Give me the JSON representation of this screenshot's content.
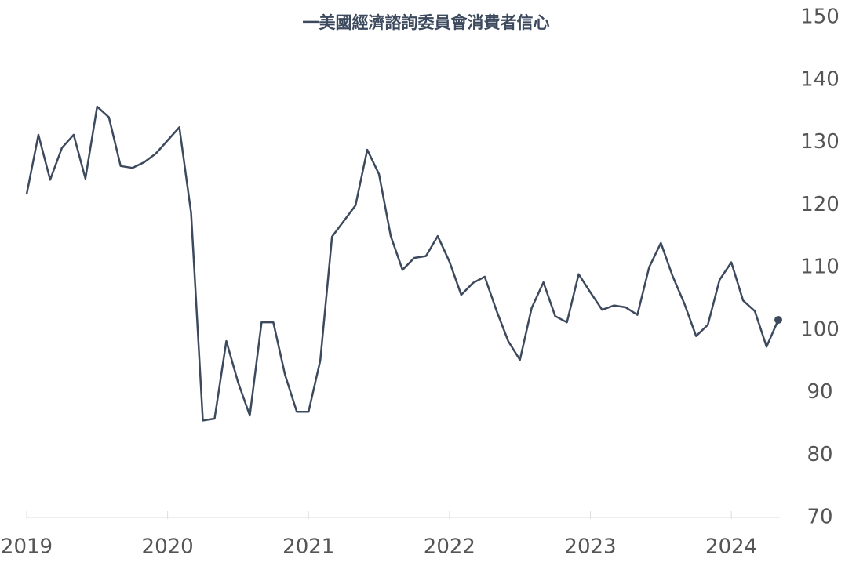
{
  "chart_data": {
    "type": "line",
    "title": "一美國經濟諮詢委員會消費者信心",
    "x": [
      2019,
      2019.0833,
      2019.1667,
      2019.25,
      2019.3333,
      2019.4167,
      2019.5,
      2019.5833,
      2019.6667,
      2019.75,
      2019.8333,
      2019.9167,
      2020,
      2020.0833,
      2020.1667,
      2020.25,
      2020.3333,
      2020.4167,
      2020.5,
      2020.5833,
      2020.6667,
      2020.75,
      2020.8333,
      2020.9167,
      2021,
      2021.0833,
      2021.1667,
      2021.25,
      2021.3333,
      2021.4167,
      2021.5,
      2021.5833,
      2021.6667,
      2021.75,
      2021.8333,
      2021.9167,
      2022,
      2022.0833,
      2022.1667,
      2022.25,
      2022.3333,
      2022.4167,
      2022.5,
      2022.5833,
      2022.6667,
      2022.75,
      2022.8333,
      2022.9167,
      2023,
      2023.0833,
      2023.1667,
      2023.25,
      2023.3333,
      2023.4167,
      2023.5,
      2023.5833,
      2023.6667,
      2023.75,
      2023.8333,
      2023.9167,
      2024,
      2024.0833,
      2024.1667,
      2024.25,
      2024.3333
    ],
    "series": [
      {
        "color": "#3d4a5e",
        "values": [
          121.7,
          131.2,
          124.0,
          129.1,
          131.2,
          124.2,
          135.7,
          134.0,
          126.2,
          125.9,
          126.8,
          128.2,
          130.3,
          132.4,
          118.7,
          85.5,
          85.8,
          98.2,
          91.6,
          86.3,
          101.2,
          101.2,
          92.8,
          86.9,
          86.9,
          95.1,
          114.9,
          117.4,
          119.9,
          128.8,
          124.9,
          115.0,
          109.6,
          111.5,
          111.8,
          115.0,
          110.9,
          105.6,
          107.5,
          108.5,
          103.1,
          98.2,
          95.2,
          103.5,
          107.6,
          102.2,
          101.2,
          108.9,
          106.0,
          103.2,
          103.9,
          103.6,
          102.4,
          110.0,
          113.9,
          108.6,
          104.2,
          99.0,
          100.8,
          108.0,
          110.8,
          104.7,
          103.0,
          97.3,
          101.6
        ]
      }
    ],
    "xlim": [
      2019,
      2024.3333
    ],
    "xticks": [
      2019,
      2020,
      2021,
      2022,
      2023,
      2024
    ],
    "ylim": [
      70,
      150
    ],
    "yticks": [
      70,
      80,
      90,
      100,
      110,
      120,
      130,
      140,
      150
    ],
    "y_axis_side": "right",
    "last_point_marker": true
  }
}
